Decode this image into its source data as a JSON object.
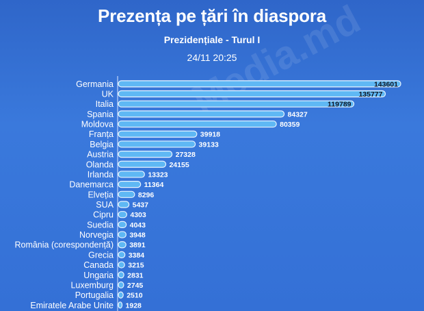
{
  "header": {
    "title": "Prezența pe țări în diaspora",
    "subtitle": "Prezidențiale - Turul I",
    "timestamp": "24/11 20:25"
  },
  "watermark": "Media.md",
  "colors": {
    "background": "#3470d6",
    "bar_fill": "#5fb8f4",
    "bar_stroke": "#e8f4ff",
    "axis": "#dce9ff"
  },
  "chart_data": {
    "type": "bar",
    "orientation": "horizontal",
    "categories": [
      "Germania",
      "UK",
      "Italia",
      "Spania",
      "Moldova",
      "Franța",
      "Belgia",
      "Austria",
      "Olanda",
      "Irlanda",
      "Danemarca",
      "Elveția",
      "SUA",
      "Cipru",
      "Suedia",
      "Norvegia",
      "România (corespondență)",
      "Grecia",
      "Canada",
      "Ungaria",
      "Luxemburg",
      "Portugalia",
      "Emiratele Arabe Unite"
    ],
    "values": [
      143601,
      135777,
      119789,
      84327,
      80359,
      39918,
      39133,
      27328,
      24155,
      13323,
      11364,
      8296,
      5437,
      4303,
      4043,
      3948,
      3891,
      3384,
      3215,
      2831,
      2745,
      2510,
      1928
    ],
    "data_labels": true,
    "grid": false
  }
}
